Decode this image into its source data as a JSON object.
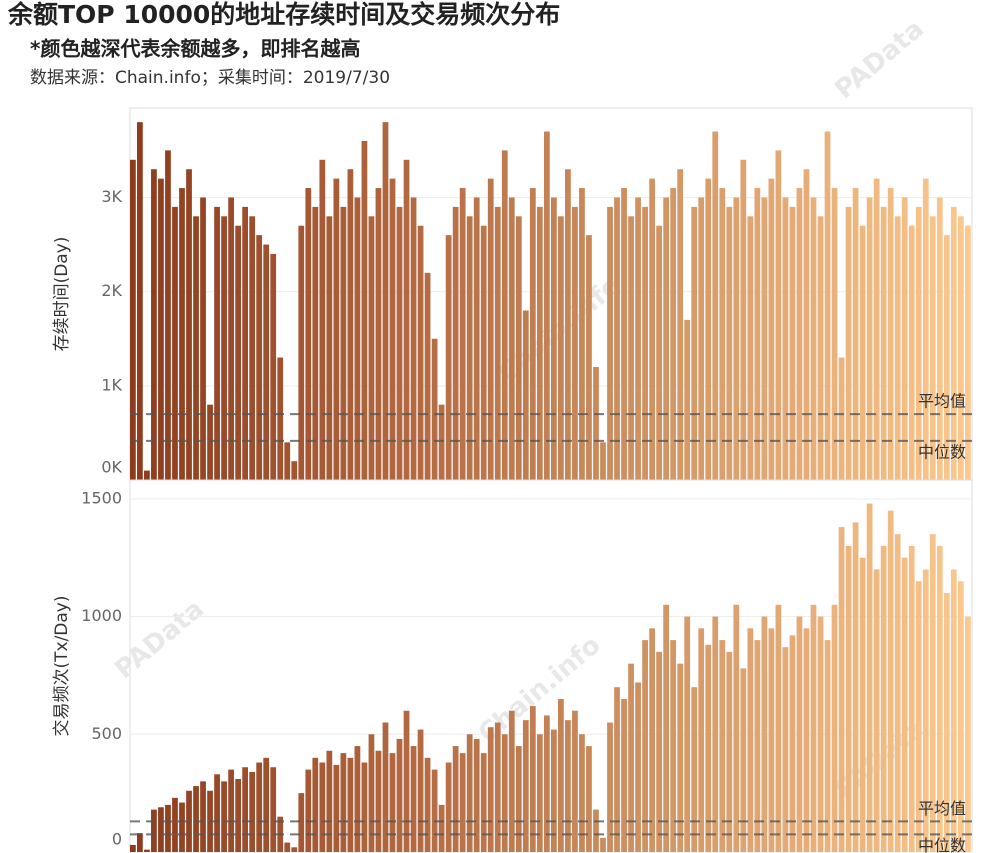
{
  "header": {
    "title": "余额TOP 10000的地址存续时间及交易频次分布",
    "subtitle": "*颜色越深代表余额越多，即排名越高",
    "source": "数据来源：Chain.info；采集时间：2019/7/30",
    "watermarks": [
      "PAData",
      "Chain.info"
    ]
  },
  "chart_data": [
    {
      "type": "bar",
      "y_label": "存续时间(Day)",
      "colors": [
        "#8e3a1b",
        "#fbc98f"
      ],
      "grid": true,
      "ylim": [
        0,
        3950
      ],
      "yticks": [
        {
          "value": 0,
          "label": "0K"
        },
        {
          "value": 1000,
          "label": "1K"
        },
        {
          "value": 2000,
          "label": "2K"
        },
        {
          "value": 3000,
          "label": "3K"
        }
      ],
      "ref_lines": [
        {
          "label": "平均值",
          "value": 700
        },
        {
          "label": "中位数",
          "value": 415
        }
      ],
      "values": [
        3400,
        3800,
        100,
        3300,
        3200,
        3500,
        2900,
        3100,
        3300,
        2800,
        3000,
        800,
        2900,
        2800,
        3000,
        2700,
        2900,
        2800,
        2600,
        2500,
        2400,
        1300,
        400,
        200,
        2700,
        3100,
        2900,
        3400,
        2800,
        3200,
        2900,
        3300,
        3000,
        3600,
        2800,
        3100,
        3800,
        3200,
        2900,
        3400,
        3000,
        2700,
        2200,
        1500,
        800,
        2600,
        2900,
        3100,
        2800,
        3000,
        2700,
        3200,
        2900,
        3500,
        3000,
        2800,
        1800,
        3100,
        2900,
        3700,
        3000,
        2800,
        3300,
        2900,
        3100,
        2600,
        1200,
        400,
        2900,
        3000,
        3100,
        2800,
        3000,
        2900,
        3200,
        2700,
        3000,
        3100,
        3300,
        1700,
        2900,
        3000,
        3200,
        3700,
        3100,
        2900,
        3000,
        3400,
        2800,
        3100,
        3000,
        3200,
        3500,
        3000,
        2900,
        3100,
        3300,
        3000,
        2800,
        3700,
        3100,
        1300,
        2900,
        3100,
        2700,
        3000,
        3200,
        2900,
        3100,
        2800,
        3000,
        2700,
        2900,
        3200,
        2800,
        3000,
        2600,
        2900,
        2800,
        2700
      ]
    },
    {
      "type": "bar",
      "y_label": "交易频次(Tx/Day)",
      "colors": [
        "#8e3a1b",
        "#fbc98f"
      ],
      "grid": true,
      "ylim": [
        0,
        1580
      ],
      "yticks": [
        0,
        500,
        1000,
        1500
      ],
      "ref_lines": [
        {
          "label": "平均值",
          "value": 130
        },
        {
          "label": "中位数",
          "value": 75
        }
      ],
      "values": [
        30,
        80,
        10,
        180,
        190,
        200,
        230,
        210,
        260,
        280,
        300,
        260,
        330,
        300,
        350,
        310,
        360,
        340,
        380,
        400,
        360,
        150,
        40,
        20,
        250,
        350,
        400,
        380,
        430,
        370,
        420,
        400,
        450,
        380,
        500,
        430,
        550,
        420,
        480,
        600,
        450,
        520,
        400,
        350,
        200,
        380,
        450,
        420,
        500,
        480,
        420,
        530,
        550,
        500,
        600,
        450,
        560,
        620,
        500,
        580,
        520,
        650,
        560,
        600,
        500,
        450,
        180,
        60,
        550,
        700,
        650,
        800,
        720,
        900,
        950,
        850,
        1050,
        900,
        800,
        1000,
        700,
        950,
        880,
        1000,
        900,
        850,
        1050,
        780,
        950,
        900,
        1000,
        950,
        1050,
        870,
        920,
        1000,
        950,
        1050,
        1000,
        900,
        1050,
        1380,
        1300,
        1400,
        1250,
        1480,
        1200,
        1300,
        1450,
        1350,
        1250,
        1300,
        1150,
        1200,
        1350,
        1300,
        1100,
        1200,
        1150,
        1000
      ]
    }
  ]
}
